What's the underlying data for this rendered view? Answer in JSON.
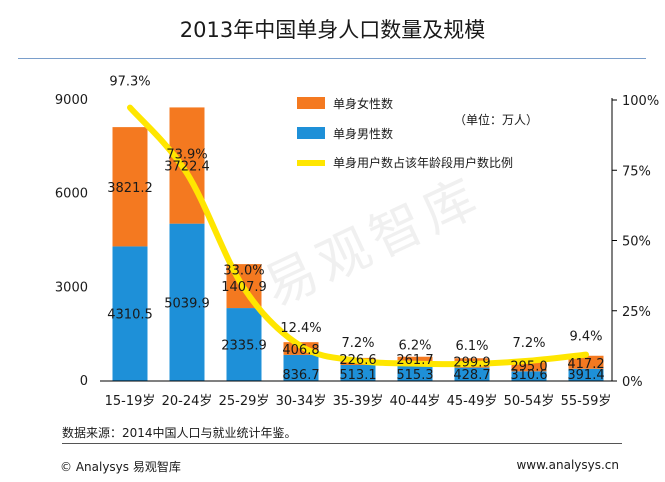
{
  "title": "2013年中国单身人口数量及规模",
  "unit_note": "（单位：万人）",
  "source": "数据来源：2014中国人口与就业统计年鉴。",
  "footer": {
    "copyright": "© Analysys 易观智库",
    "website": "www.analysys.cn"
  },
  "watermark": "易观智库",
  "colors": {
    "female": "#f47920",
    "male": "#1e90d8",
    "ratio": "#ffe600"
  },
  "chart_data": {
    "type": "bar",
    "stacked": true,
    "categories": [
      "15-19岁",
      "20-24岁",
      "25-29岁",
      "30-34岁",
      "35-39岁",
      "40-44岁",
      "45-49岁",
      "50-54岁",
      "55-59岁"
    ],
    "series": [
      {
        "name": "单身男性数",
        "values": [
          4310.5,
          5039.9,
          2335.9,
          836.7,
          513.1,
          515.3,
          428.7,
          310.6,
          391.4
        ]
      },
      {
        "name": "单身女性数",
        "values": [
          3821.2,
          3722.4,
          1407.9,
          406.8,
          226.6,
          261.7,
          299.9,
          295.0,
          417.2
        ]
      }
    ],
    "line": {
      "name": "单身用户数占该年龄段用户数比例",
      "values": [
        97.3,
        73.9,
        33.0,
        12.4,
        7.2,
        6.2,
        6.1,
        7.2,
        9.4
      ],
      "labels": [
        "97.3%",
        "73.9%",
        "33.0%",
        "12.4%",
        "7.2%",
        "6.2%",
        "6.1%",
        "7.2%",
        "9.4%"
      ]
    },
    "value_labels": {
      "male": [
        "4310.5",
        "5039.9",
        "2335.9",
        "836.7",
        "513.1",
        "515.3",
        "428.7",
        "310.6",
        "391.4"
      ],
      "female": [
        "3821.2",
        "3722.4",
        "1407.9",
        "406.8",
        "226.6",
        "261.7",
        "299.9",
        "295.0",
        "417.2"
      ]
    },
    "y_left": {
      "min": 0,
      "max": 9000,
      "ticks": [
        "0",
        "3000",
        "6000",
        "9000"
      ]
    },
    "y_right": {
      "min": 0,
      "max": 100,
      "ticks": [
        "0%",
        "25%",
        "50%",
        "75%",
        "100%"
      ]
    },
    "legend_position": "top-right",
    "grid": false
  }
}
